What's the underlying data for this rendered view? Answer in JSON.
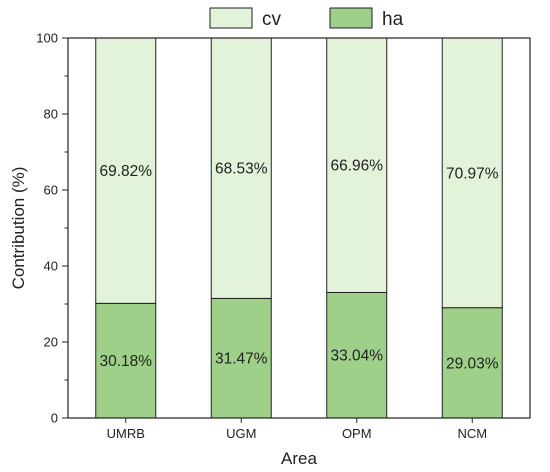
{
  "chart_data": {
    "type": "bar",
    "stacked": true,
    "categories": [
      "UMRB",
      "UGM",
      "OPM",
      "NCM"
    ],
    "series": [
      {
        "name": "ha",
        "values": [
          30.18,
          31.47,
          33.04,
          29.03
        ],
        "labels": [
          "30.18%",
          "31.47%",
          "33.04%",
          "29.03%"
        ],
        "color": "#9fd08a"
      },
      {
        "name": "cv",
        "values": [
          69.82,
          68.53,
          66.96,
          70.97
        ],
        "labels": [
          "69.82%",
          "68.53%",
          "66.96%",
          "70.97%"
        ],
        "color": "#e3f3d9"
      }
    ],
    "legend_order": [
      "cv",
      "ha"
    ],
    "legend_position": "top",
    "xlabel": "Area",
    "ylabel": "Contribution (%)",
    "ylim": [
      0,
      100
    ],
    "yticks": [
      0,
      20,
      40,
      60,
      80,
      100
    ],
    "grid": false
  }
}
